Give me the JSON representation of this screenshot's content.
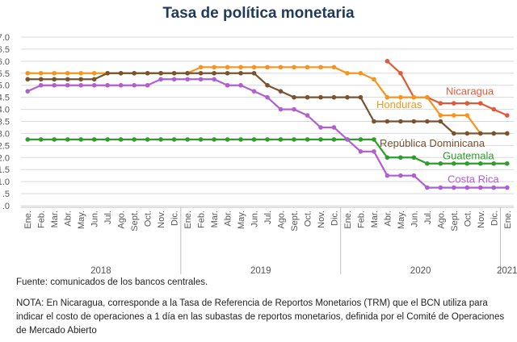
{
  "chart_data": {
    "type": "line",
    "title": "Tasa de política monetaria",
    "xlabel": "",
    "ylabel": "",
    "ylim": [
      0,
      7
    ],
    "yticks": [
      0,
      0.5,
      1,
      1.5,
      2,
      2.5,
      3,
      3.5,
      4,
      4.5,
      5,
      5.5,
      6,
      6.5,
      7
    ],
    "ytick_labels": [
      ".0",
      ".5",
      "1.0",
      "1.5",
      "2.0",
      "2.5",
      "3.0",
      "3.5",
      "4.0",
      "4.5",
      "5.0",
      "5.5",
      "6.0",
      "6.5",
      "7.0"
    ],
    "grid": true,
    "month_labels": [
      "Ene.",
      "Feb.",
      "Mar.",
      "Abr.",
      "May.",
      "Jun.",
      "Jul.",
      "Ago.",
      "Sept.",
      "Oct.",
      "Nov.",
      "Dic.",
      "Ene.",
      "Feb.",
      "Mar.",
      "Abr.",
      "May.",
      "Jun.",
      "Jul.",
      "Ago.",
      "Sept.",
      "Oct.",
      "Nov.",
      "Dic.",
      "Ene.",
      "Feb.",
      "Mar.",
      "Abr.",
      "May.",
      "Jun.",
      "Jul.",
      "Ago.",
      "Sept.",
      "Oct.",
      "Nov.",
      "Dic.",
      "Ene."
    ],
    "years": [
      {
        "label": "2018",
        "start": 0,
        "end": 11
      },
      {
        "label": "2019",
        "start": 12,
        "end": 23
      },
      {
        "label": "2020",
        "start": 24,
        "end": 35
      },
      {
        "label": "2021",
        "start": 36,
        "end": 36
      }
    ],
    "series": [
      {
        "name": "Nicaragua",
        "color": "#e05a3a",
        "start": 27,
        "values": [
          6.0,
          5.5,
          4.5,
          4.5,
          4.25,
          4.25,
          4.25,
          4.25,
          4.0,
          3.75
        ]
      },
      {
        "name": "Honduras",
        "color": "#f7941d",
        "start": 0,
        "values": [
          5.5,
          5.5,
          5.5,
          5.5,
          5.5,
          5.5,
          5.5,
          5.5,
          5.5,
          5.5,
          5.5,
          5.5,
          5.5,
          5.75,
          5.75,
          5.75,
          5.75,
          5.75,
          5.75,
          5.75,
          5.75,
          5.75,
          5.75,
          5.75,
          5.5,
          5.5,
          5.25,
          4.5,
          4.5,
          4.5,
          4.5,
          3.75,
          3.75,
          3.75,
          3.0,
          3.0,
          3.0
        ]
      },
      {
        "name": "República Dominicana",
        "color": "#7a5230",
        "start": 0,
        "values": [
          5.25,
          5.25,
          5.25,
          5.25,
          5.25,
          5.25,
          5.5,
          5.5,
          5.5,
          5.5,
          5.5,
          5.5,
          5.5,
          5.5,
          5.5,
          5.5,
          5.5,
          5.5,
          5.0,
          4.75,
          4.5,
          4.5,
          4.5,
          4.5,
          4.5,
          4.5,
          3.5,
          3.5,
          3.5,
          3.5,
          3.5,
          3.5,
          3.0,
          3.0,
          3.0,
          3.0,
          3.0
        ]
      },
      {
        "name": "Guatemala",
        "color": "#2e9e2a",
        "start": 0,
        "values": [
          2.75,
          2.75,
          2.75,
          2.75,
          2.75,
          2.75,
          2.75,
          2.75,
          2.75,
          2.75,
          2.75,
          2.75,
          2.75,
          2.75,
          2.75,
          2.75,
          2.75,
          2.75,
          2.75,
          2.75,
          2.75,
          2.75,
          2.75,
          2.75,
          2.75,
          2.75,
          2.75,
          2.0,
          2.0,
          2.0,
          1.75,
          1.75,
          1.75,
          1.75,
          1.75,
          1.75,
          1.75
        ]
      },
      {
        "name": "Costa Rica",
        "color": "#b05fd0",
        "start": 0,
        "values": [
          4.75,
          5.0,
          5.0,
          5.0,
          5.0,
          5.0,
          5.0,
          5.0,
          5.0,
          5.0,
          5.25,
          5.25,
          5.25,
          5.25,
          5.25,
          5.0,
          5.0,
          4.75,
          4.5,
          4.0,
          4.0,
          3.75,
          3.25,
          3.25,
          2.75,
          2.25,
          2.25,
          1.25,
          1.25,
          1.25,
          0.75,
          0.75,
          0.75,
          0.75,
          0.75,
          0.75,
          0.75
        ]
      }
    ]
  },
  "source": "Fuente: comunicados de los bancos centrales.",
  "footnote": "NOTA: En Nicaragua, corresponde a la Tasa de Referencia de Reportos Monetarios (TRM) que el BCN utiliza para indicar el costo de operaciones a 1 día en las subastas de reportos monetarios, definida por el Comité de Operaciones de Mercado Abierto"
}
